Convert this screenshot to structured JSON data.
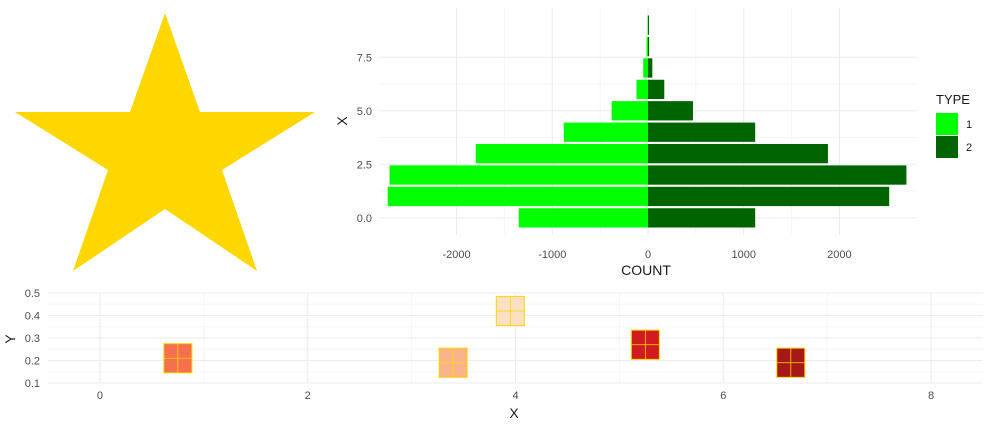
{
  "colors": {
    "star": "#FFD700",
    "type1": "#00FF00",
    "type2": "#006400",
    "grid_major": "#EBEBEB",
    "grid_minor": "#F5F5F5",
    "tile_border": "#FFD700"
  },
  "star_icon": "star-shape",
  "chart_data": [
    {
      "type": "bar",
      "orientation": "horizontal",
      "xlabel": "COUNT",
      "ylabel": "X",
      "xlim": [
        -2800,
        2800
      ],
      "ylim": [
        -0.8,
        9.8
      ],
      "x_ticks": [
        -2000,
        -1000,
        0,
        1000,
        2000
      ],
      "x_tick_labels": [
        "-2000",
        "-1000",
        "0",
        "1000",
        "2000"
      ],
      "y_ticks": [
        0.0,
        2.5,
        5.0,
        7.5
      ],
      "y_tick_labels": [
        "0.0",
        "2.5",
        "5.0",
        "7.5"
      ],
      "categories": [
        0,
        1,
        2,
        3,
        4,
        5,
        6,
        7,
        8,
        9
      ],
      "series": [
        {
          "name": "1",
          "values": [
            -1350,
            -2720,
            -2700,
            -1800,
            -880,
            -380,
            -120,
            -50,
            -15,
            -5
          ]
        },
        {
          "name": "2",
          "values": [
            1120,
            2520,
            2700,
            1880,
            1120,
            470,
            170,
            45,
            12,
            5
          ]
        }
      ],
      "legend": {
        "title": "TYPE",
        "entries": [
          "1",
          "2"
        ],
        "placement": "right"
      },
      "grid": true
    },
    {
      "type": "heatmap",
      "xlabel": "X",
      "ylabel": "Y",
      "xlim": [
        -0.5,
        8.5
      ],
      "ylim": [
        0.1,
        0.5
      ],
      "x_ticks": [
        0,
        2,
        4,
        6,
        8
      ],
      "x_tick_labels": [
        "0",
        "2",
        "4",
        "6",
        "8"
      ],
      "y_ticks": [
        0.1,
        0.2,
        0.3,
        0.4,
        0.5
      ],
      "y_tick_labels": [
        "0.1",
        "0.2",
        "0.3",
        "0.4",
        "0.5"
      ],
      "tiles": [
        {
          "x": 0.75,
          "y": 0.21,
          "fill": "#F4704F"
        },
        {
          "x": 3.4,
          "y": 0.19,
          "fill": "#F8B38B"
        },
        {
          "x": 3.95,
          "y": 0.42,
          "fill": "#FBE0C4"
        },
        {
          "x": 5.25,
          "y": 0.27,
          "fill": "#D01C20"
        },
        {
          "x": 6.65,
          "y": 0.19,
          "fill": "#A6191B"
        }
      ],
      "grid": true
    }
  ]
}
